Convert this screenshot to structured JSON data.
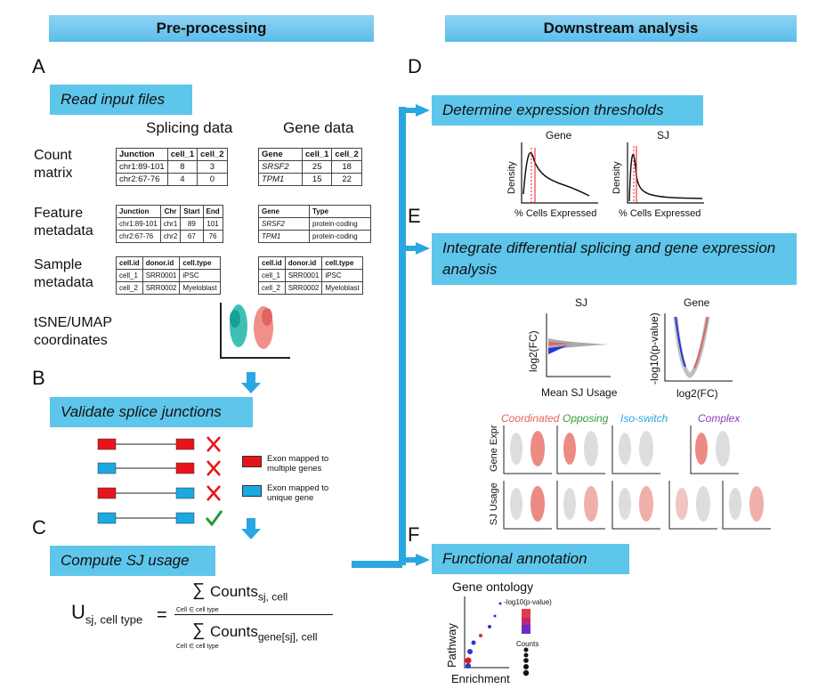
{
  "headers": {
    "left": "Pre-processing",
    "right": "Downstream analysis"
  },
  "letters": {
    "a": "A",
    "b": "B",
    "c": "C",
    "d": "D",
    "e": "E",
    "f": "F"
  },
  "boxes": {
    "read_input": "Read input files",
    "validate": "Validate splice junctions",
    "compute": "Compute SJ usage",
    "thresholds": "Determine expression thresholds",
    "integrate": "Integrate differential splicing and gene expression analysis",
    "functional": "Functional annotation"
  },
  "columns": {
    "splicing": "Splicing data",
    "gene": "Gene data"
  },
  "rows": {
    "count_matrix": "Count matrix",
    "feature_metadata": "Feature metadata",
    "sample_metadata": "Sample metadata",
    "tsne": "tSNE/UMAP coordinates"
  },
  "tables": {
    "sj_count": [
      [
        "Junction",
        "cell_1",
        "cell_2"
      ],
      [
        "chr1:89-101",
        "8",
        "3"
      ],
      [
        "chr2:67-76",
        "4",
        "0"
      ]
    ],
    "gene_count": [
      [
        "Gene",
        "cell_1",
        "cell_2"
      ],
      [
        "SRSF2",
        "25",
        "18"
      ],
      [
        "TPM1",
        "15",
        "22"
      ]
    ],
    "sj_feature": [
      [
        "Junction",
        "Chr",
        "Start",
        "End"
      ],
      [
        "chr1:89-101",
        "chr1",
        "89",
        "101"
      ],
      [
        "chr2:67-76",
        "chr2",
        "67",
        "76"
      ]
    ],
    "gene_feature": [
      [
        "Gene",
        "Type"
      ],
      [
        "SRSF2",
        "protein-coding"
      ],
      [
        "TPM1",
        "protein-coding"
      ]
    ],
    "sj_sample": [
      [
        "cell.id",
        "donor.id",
        "cell.type"
      ],
      [
        "cell_1",
        "SRR0001",
        "iPSC"
      ],
      [
        "cell_2",
        "SRR0002",
        "Myeloblast"
      ]
    ],
    "gene_sample": [
      [
        "cell.id",
        "donor.id",
        "cell.type"
      ],
      [
        "cell_1",
        "SRR0001",
        "iPSC"
      ],
      [
        "cell_2",
        "SRR0002",
        "Myeloblast"
      ]
    ]
  },
  "legend": {
    "red": "Exon mapped to multiple genes",
    "blue": "Exon mapped to unique gene"
  },
  "formula": {
    "u": "U",
    "u_sub": "sj, cell type",
    "equals": "=",
    "sum": "∑",
    "num_word": "Counts",
    "num_sub": "sj, cell",
    "num_under": "Cell ∈ cell type",
    "den_word": "Counts",
    "den_sub": "gene[sj], cell",
    "den_under": "Cell ∈ cell type"
  },
  "density": {
    "gene_title": "Gene",
    "sj_title": "SJ",
    "ylabel": "Density",
    "xlabel": "% Cells Expressed"
  },
  "diff": {
    "sj_title": "SJ",
    "gene_title": "Gene",
    "sj_ylabel": "log2(FC)",
    "sj_xlabel": "Mean SJ Usage",
    "gene_ylabel": "-log10(p-value)",
    "gene_xlabel": "log2(FC)"
  },
  "categories": {
    "coordinated": "Coordinated",
    "opposing": "Opposing",
    "isoswitch": "Iso-switch",
    "complex": "Complex",
    "gene_expr": "Gene Expr",
    "sj_usage": "SJ Usage"
  },
  "go": {
    "title": "Gene ontology",
    "pathway": "Pathway",
    "enrichment": "Enrichment",
    "pval": "-log10(p-value)",
    "counts": "Counts"
  },
  "colors": {
    "box": "#5ec6ea",
    "arrow": "#2aa7e0",
    "exon_red": "#e8141b",
    "exon_blue": "#1aa9e1"
  }
}
